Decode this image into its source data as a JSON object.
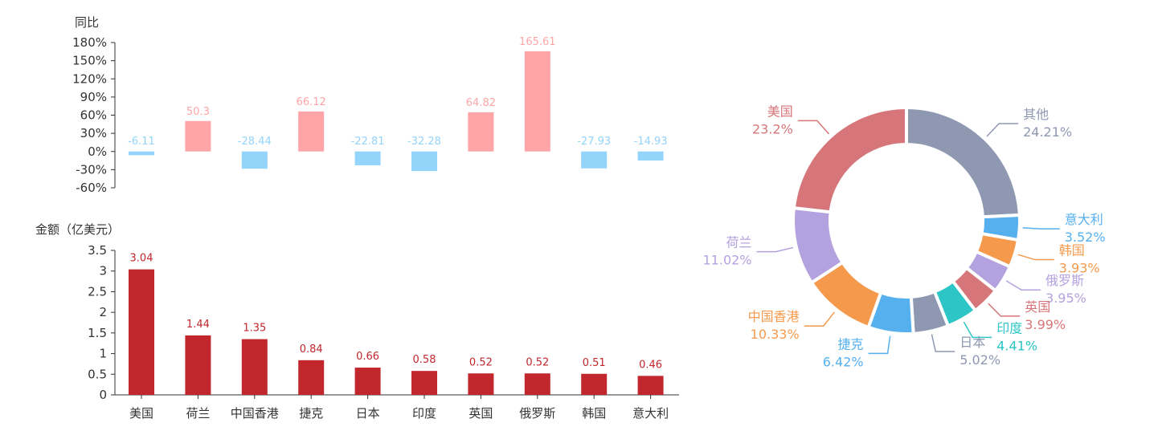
{
  "chart_data": [
    {
      "type": "bar",
      "ylabel": "同比",
      "categories": [
        "美国",
        "荷兰",
        "中国香港",
        "捷克",
        "日本",
        "印度",
        "英国",
        "俄罗斯",
        "韩国",
        "意大利"
      ],
      "values": [
        -6.11,
        50.3,
        -28.44,
        66.12,
        -22.81,
        -32.28,
        64.82,
        165.61,
        -27.93,
        -14.93
      ],
      "value_labels": [
        "-6.11",
        "50.3",
        "-28.44",
        "66.12",
        "-22.81",
        "-32.28",
        "64.82",
        "165.61",
        "-27.93",
        "-14.93"
      ],
      "ylim": [
        -60,
        180
      ],
      "yticks": [
        180,
        150,
        120,
        90,
        60,
        30,
        0,
        -30,
        -60
      ],
      "ytick_labels": [
        "180%",
        "150%",
        "120%",
        "90%",
        "60%",
        "30%",
        "0%",
        "-30%",
        "-60%"
      ],
      "colors": {
        "positive": "#ffa5a8",
        "negative": "#93d4fb",
        "positive_label": "#ffa5a8",
        "negative_label": "#93d4fb"
      },
      "grid": false
    },
    {
      "type": "bar",
      "ylabel": "金额（亿美元）",
      "categories": [
        "美国",
        "荷兰",
        "中国香港",
        "捷克",
        "日本",
        "印度",
        "英国",
        "俄罗斯",
        "韩国",
        "意大利"
      ],
      "values": [
        3.04,
        1.44,
        1.35,
        0.84,
        0.66,
        0.58,
        0.52,
        0.52,
        0.51,
        0.46
      ],
      "value_labels": [
        "3.04",
        "1.44",
        "1.35",
        "0.84",
        "0.66",
        "0.58",
        "0.52",
        "0.52",
        "0.51",
        "0.46"
      ],
      "ylim": [
        0,
        3.5
      ],
      "yticks": [
        3.5,
        3,
        2.5,
        2,
        1.5,
        1,
        0.5,
        0
      ],
      "ytick_labels": [
        "3.5",
        "3",
        "2.5",
        "2",
        "1.5",
        "1",
        "0.5",
        "0"
      ],
      "colors": {
        "bar": "#c1272d",
        "label": "#c1272d"
      },
      "grid": false
    },
    {
      "type": "pie",
      "donut": true,
      "slices": [
        {
          "name": "其他",
          "value": 24.21,
          "label": "24.21%",
          "color": "#8e98b1"
        },
        {
          "name": "意大利",
          "value": 3.52,
          "label": "3.52%",
          "color": "#56b0ee"
        },
        {
          "name": "韩国",
          "value": 3.93,
          "label": "3.93%",
          "color": "#f59a4c"
        },
        {
          "name": "俄罗斯",
          "value": 3.95,
          "label": "3.95%",
          "color": "#b4a1df"
        },
        {
          "name": "英国",
          "value": 3.99,
          "label": "3.99%",
          "color": "#d7767a"
        },
        {
          "name": "印度",
          "value": 4.41,
          "label": "4.41%",
          "color": "#2dc5c6"
        },
        {
          "name": "日本",
          "value": 5.02,
          "label": "5.02%",
          "color": "#8e98b1"
        },
        {
          "name": "捷克",
          "value": 6.42,
          "label": "6.42%",
          "color": "#56b0ee"
        },
        {
          "name": "中国香港",
          "value": 10.33,
          "label": "10.33%",
          "color": "#f59a4c"
        },
        {
          "name": "荷兰",
          "value": 11.02,
          "label": "11.02%",
          "color": "#b4a1df"
        },
        {
          "name": "美国",
          "value": 23.2,
          "label": "23.2%",
          "color": "#d7767a"
        }
      ],
      "start": "top",
      "direction": "clockwise"
    }
  ]
}
